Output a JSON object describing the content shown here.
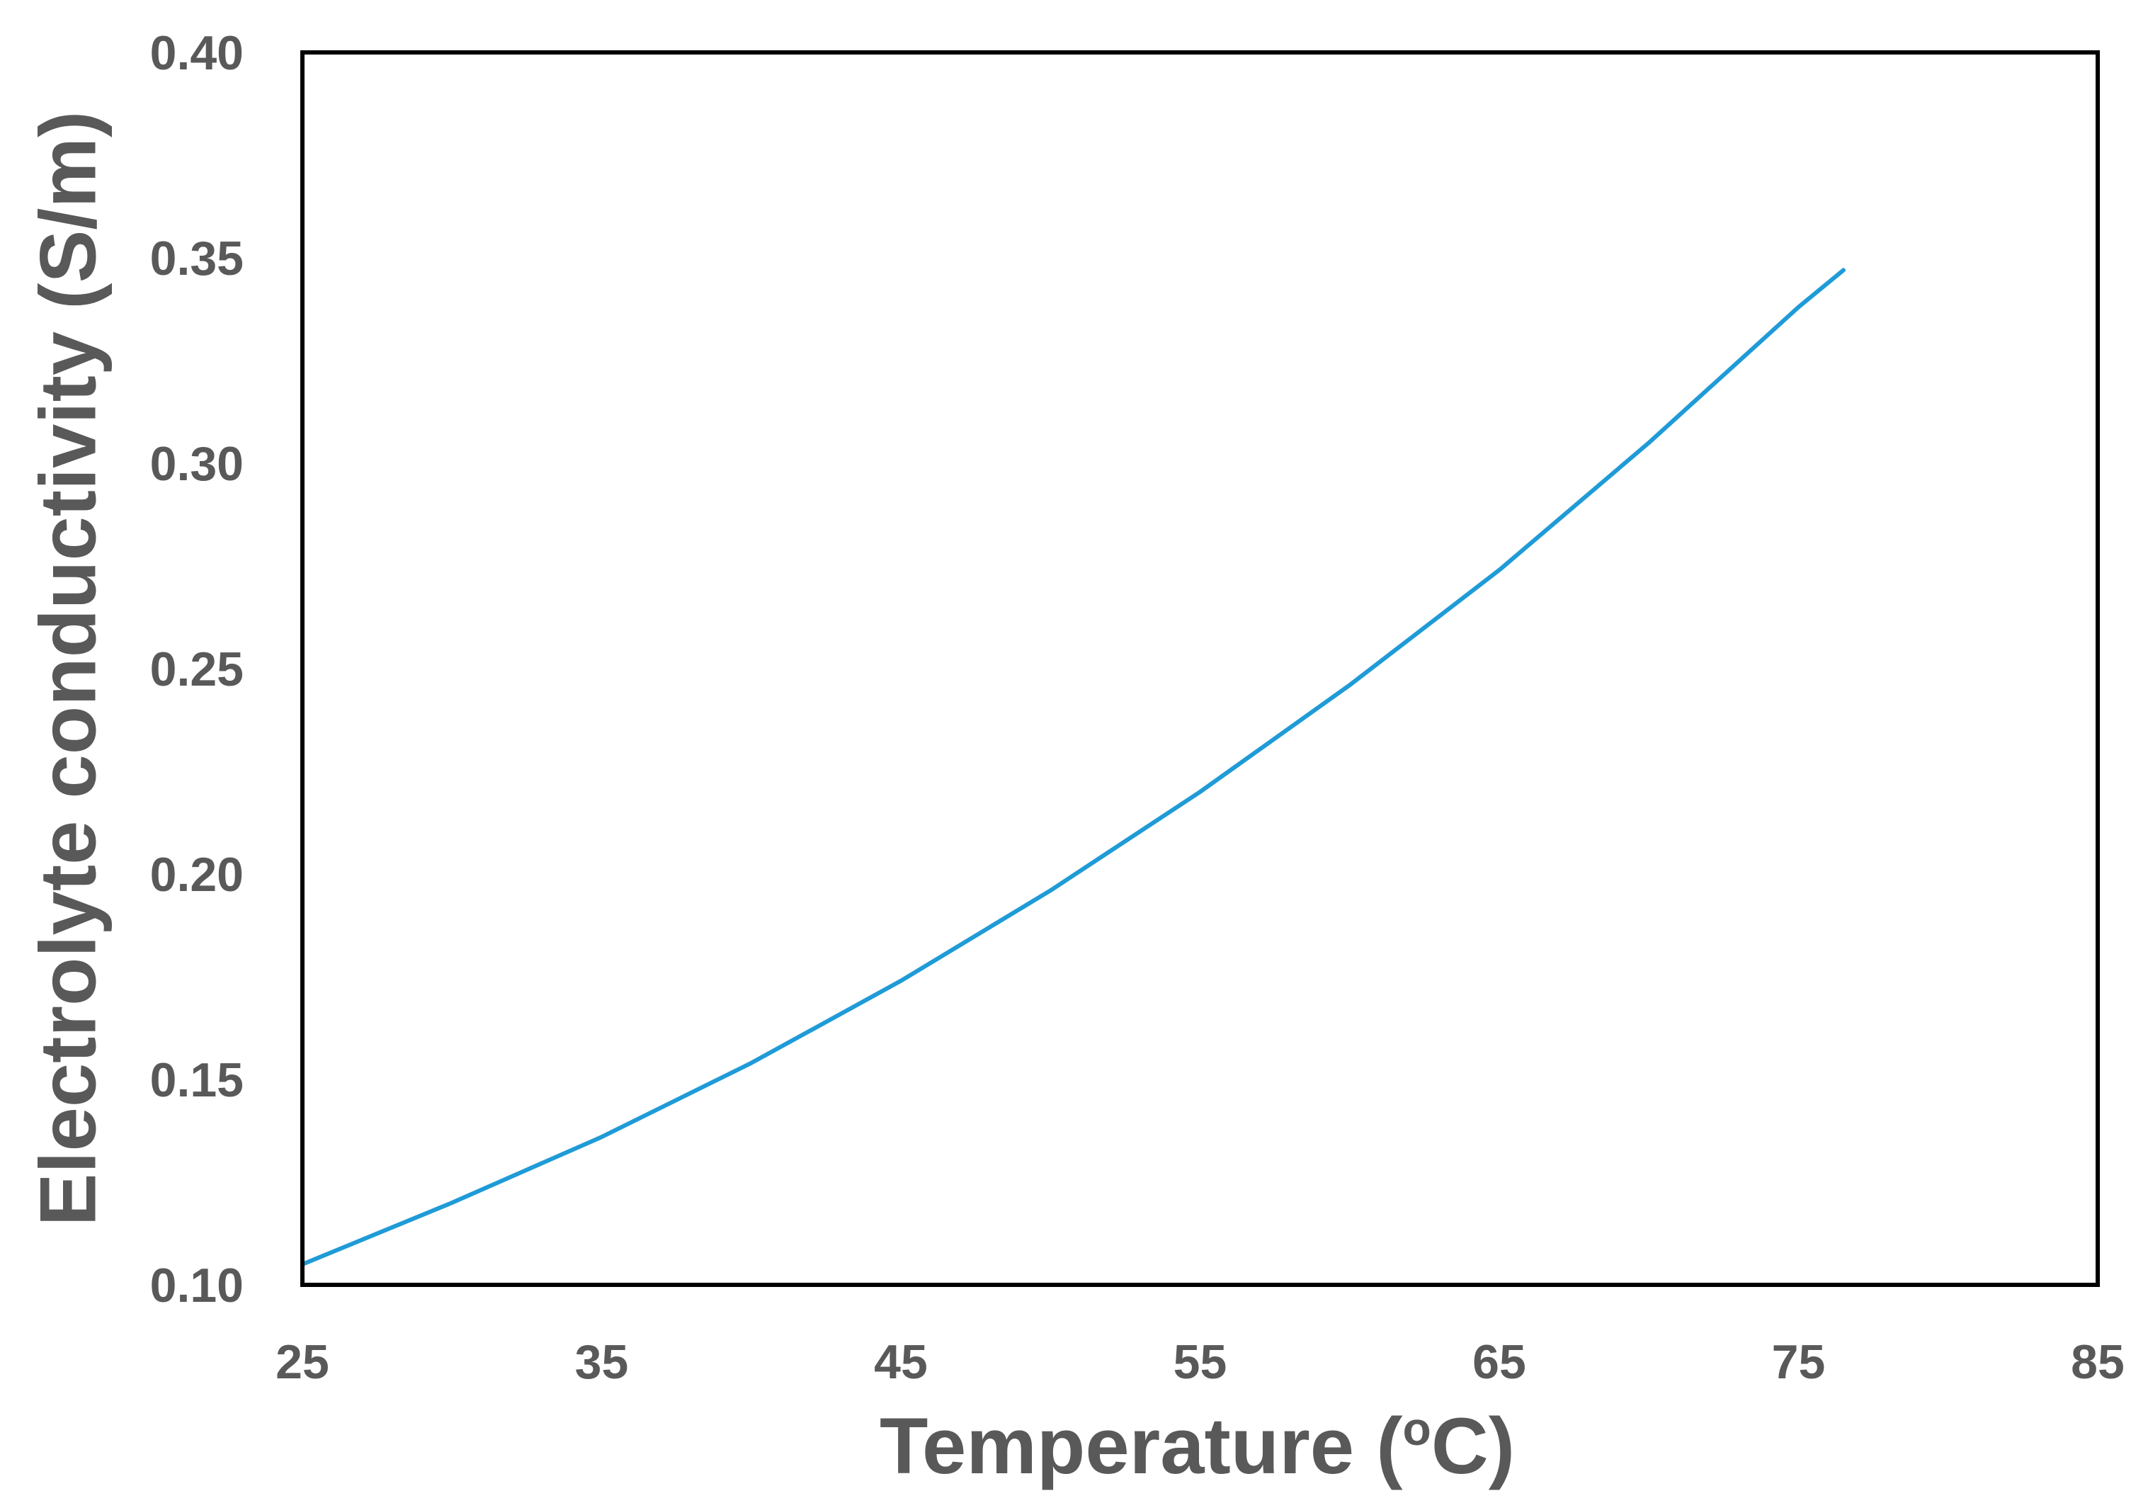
{
  "chart_data": {
    "type": "line",
    "title": "",
    "xlabel": {
      "prefix": "Temperature (",
      "superscript": "o",
      "suffix": "C)"
    },
    "ylabel": "Electrolyte conductivity (S/m)",
    "xlim": [
      25,
      85
    ],
    "ylim": [
      0.1,
      0.4
    ],
    "x_ticks": [
      25,
      35,
      45,
      55,
      65,
      75,
      85
    ],
    "x_tick_labels": [
      "25",
      "35",
      "45",
      "55",
      "65",
      "75",
      "85"
    ],
    "y_ticks": [
      0.1,
      0.15,
      0.2,
      0.25,
      0.3,
      0.35,
      0.4
    ],
    "y_tick_labels": [
      "0.10",
      "0.15",
      "0.20",
      "0.25",
      "0.30",
      "0.35",
      "0.40"
    ],
    "grid": false,
    "legend": "none",
    "series": [
      {
        "color": "#1f9bd7",
        "x": [
          25,
          30,
          35,
          40,
          45,
          50,
          55,
          60,
          65,
          70,
          75,
          76.5
        ],
        "y": [
          0.105,
          0.12,
          0.136,
          0.154,
          0.174,
          0.196,
          0.22,
          0.246,
          0.274,
          0.305,
          0.338,
          0.347
        ]
      }
    ]
  },
  "colors": {
    "text": "#595959",
    "frame": "#000000",
    "line": "#1f9bd7"
  }
}
